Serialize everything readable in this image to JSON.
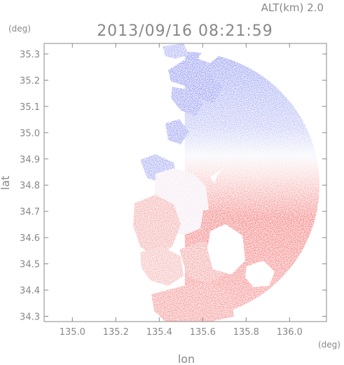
{
  "chart_data": {
    "type": "heatmap",
    "title": "2013/09/16 08:21:59",
    "altitude_label": "ALT(km) 2.0",
    "xlabel": "lon",
    "ylabel": "lat",
    "x_unit": "(deg)",
    "y_unit": "(deg)",
    "xlim": [
      134.87,
      136.17
    ],
    "ylim": [
      34.28,
      35.34
    ],
    "x_ticks": [
      135.0,
      135.2,
      135.4,
      135.6,
      135.8,
      136.0
    ],
    "x_tick_labels": [
      "135.0",
      "135.2",
      "135.4",
      "135.6",
      "135.8",
      "136.0"
    ],
    "y_ticks": [
      34.3,
      34.4,
      34.5,
      34.6,
      34.7,
      34.8,
      34.9,
      35.0,
      35.1,
      35.2,
      35.3
    ],
    "y_tick_labels": [
      "34.3",
      "34.4",
      "34.5",
      "34.6",
      "34.7",
      "34.8",
      "34.9",
      "35.0",
      "35.1",
      "35.2",
      "35.3"
    ],
    "grid": false,
    "colors": {
      "approaching": "#7f85f0",
      "receding": "#f25a5a",
      "neutral": "#ffffff",
      "axis": "#888888"
    },
    "radar_center": [
      135.55,
      34.8
    ],
    "radar_range_deg": 0.62,
    "zero_velocity_line_lat": 34.83
  }
}
